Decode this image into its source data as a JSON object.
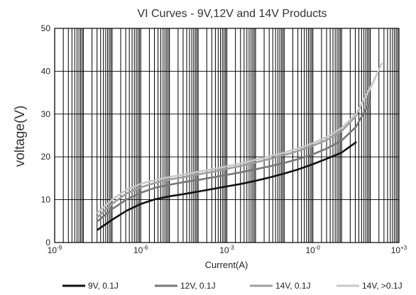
{
  "chart_data": {
    "type": "line",
    "title": "VI  Curves - 9V,12V and 14V  Products",
    "xlabel": "Current(A)",
    "ylabel": "voltage(V)",
    "xscale": "log",
    "xlim_exp": [
      -9,
      3
    ],
    "ylim": [
      0,
      50
    ],
    "yticks": [
      0,
      10,
      20,
      30,
      40,
      50
    ],
    "xtick_base": "10",
    "xticks": [
      {
        "exp": -9,
        "label": "-9"
      },
      {
        "exp": -6,
        "label": "-6"
      },
      {
        "exp": -3,
        "label": "-3"
      },
      {
        "exp": 0,
        "label": "-0"
      },
      {
        "exp": 3,
        "label": "+3"
      }
    ],
    "grid": true,
    "legend_position": "bottom",
    "series": [
      {
        "name": "9V, 0.1J",
        "color": "#111111",
        "x_exp": [
          -7.5,
          -7,
          -6.5,
          -6,
          -5.5,
          -5,
          -4.5,
          -4,
          -3.5,
          -3,
          -2.5,
          -2,
          -1.5,
          -1,
          -0.5,
          0,
          0.5,
          1,
          1.5
        ],
        "y": [
          3.0,
          5.3,
          7.4,
          9.0,
          10.1,
          10.8,
          11.3,
          11.9,
          12.5,
          13.1,
          13.7,
          14.4,
          15.2,
          16.1,
          17.1,
          18.3,
          19.6,
          21.0,
          23.4
        ]
      },
      {
        "name": "12V, 0.1J",
        "color": "#777777",
        "x_exp": [
          -7.5,
          -7,
          -6.5,
          -6,
          -5.5,
          -5,
          -4.5,
          -4,
          -3.5,
          -3,
          -2.5,
          -2,
          -1.5,
          -1,
          -0.5,
          0,
          0.5,
          1,
          1.5,
          2
        ],
        "y": [
          5.0,
          7.8,
          10.0,
          11.6,
          12.8,
          13.5,
          14.1,
          14.6,
          15.2,
          15.8,
          16.4,
          17.1,
          17.8,
          18.6,
          19.5,
          20.6,
          22.0,
          23.8,
          27.0,
          33.0
        ]
      },
      {
        "name": "14V, 0.1J",
        "color": "#9e9e9e",
        "x_exp": [
          -7.5,
          -7,
          -6.5,
          -6,
          -5.5,
          -5,
          -4.5,
          -4,
          -3.5,
          -3,
          -2.5,
          -2,
          -1.5,
          -1,
          -0.5,
          0,
          0.5,
          1,
          1.5,
          2
        ],
        "y": [
          6.0,
          9.0,
          11.4,
          12.9,
          13.9,
          14.7,
          15.3,
          15.9,
          16.5,
          17.2,
          17.9,
          18.7,
          19.5,
          20.4,
          21.4,
          22.6,
          24.0,
          26.0,
          29.5,
          36.5
        ]
      },
      {
        "name": "14V, >0.1J",
        "color": "#c8c8c8",
        "x_exp": [
          -7.5,
          -7,
          -6.5,
          -6,
          -5.5,
          -5,
          -4.5,
          -4,
          -3.5,
          -3,
          -2.5,
          -2,
          -1.5,
          -1,
          -0.5,
          0,
          0.5,
          1,
          1.5,
          2,
          2.4
        ],
        "y": [
          7.0,
          10.0,
          12.3,
          13.7,
          14.6,
          15.3,
          15.9,
          16.5,
          17.1,
          17.8,
          18.5,
          19.3,
          20.1,
          21.0,
          22.0,
          23.2,
          24.7,
          26.7,
          30.0,
          36.0,
          41.8
        ]
      }
    ]
  }
}
